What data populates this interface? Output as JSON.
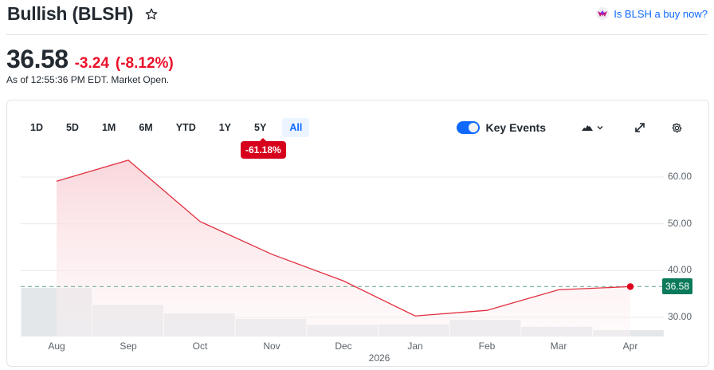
{
  "header": {
    "title": "Bullish (BLSH)",
    "watchlist_icon": "star-outline-icon",
    "buy_link_label": "Is BLSH a buy now?",
    "buy_link_icon": "analyst-logo-icon"
  },
  "quote": {
    "price": "36.58",
    "change": "-3.24",
    "change_pct": "(-8.12%)",
    "as_of": "As of 12:55:36 PM EDT. Market Open."
  },
  "chart_controls": {
    "ranges": [
      {
        "label": "1D",
        "active": false
      },
      {
        "label": "5D",
        "active": false
      },
      {
        "label": "1M",
        "active": false
      },
      {
        "label": "6M",
        "active": false
      },
      {
        "label": "YTD",
        "active": false
      },
      {
        "label": "1Y",
        "active": false
      },
      {
        "label": "5Y",
        "active": false
      },
      {
        "label": "All",
        "active": true
      }
    ],
    "range_change_badge": "-61.18%",
    "key_events_label": "Key Events",
    "key_events_enabled": true,
    "chart_type_icon": "mountain-chart-icon",
    "expand_icon": "expand-icon",
    "settings_icon": "gear-icon"
  },
  "colors": {
    "price_line": "#e0303f",
    "area_fill": "#f9d5da",
    "volume_bar": "#e1e4e8",
    "previous_close_line": "#86bca8",
    "last_price_label": "#0b7a5a",
    "negative": "#eb0f29",
    "accent": "#0f69ff"
  },
  "chart_data": {
    "type": "area",
    "title": "Bullish (BLSH) — All",
    "xlabel": "",
    "ylabel": "",
    "categories": [
      "Aug",
      "Sep",
      "Oct",
      "Nov",
      "Dec",
      "Jan",
      "Feb",
      "Mar",
      "Apr"
    ],
    "x_sublabels": {
      "Jan": "2026"
    },
    "series": [
      {
        "name": "Price",
        "values": [
          59.1,
          63.6,
          50.5,
          43.5,
          37.8,
          30.3,
          31.5,
          35.9,
          36.58
        ]
      },
      {
        "name": "Volume (relative)",
        "values": [
          100,
          65,
          48,
          36,
          24,
          25,
          34,
          20,
          13
        ]
      }
    ],
    "y_ticks": [
      "60.00",
      "50.00",
      "40.00",
      "30.00"
    ],
    "ylim": [
      26,
      66
    ],
    "reference_line": {
      "label": "36.58",
      "value": 36.58,
      "style": "dashed"
    },
    "last_point_marker": {
      "x": "Apr",
      "value": 36.58
    },
    "grid": true,
    "legend": "none",
    "axis_position": "right"
  }
}
